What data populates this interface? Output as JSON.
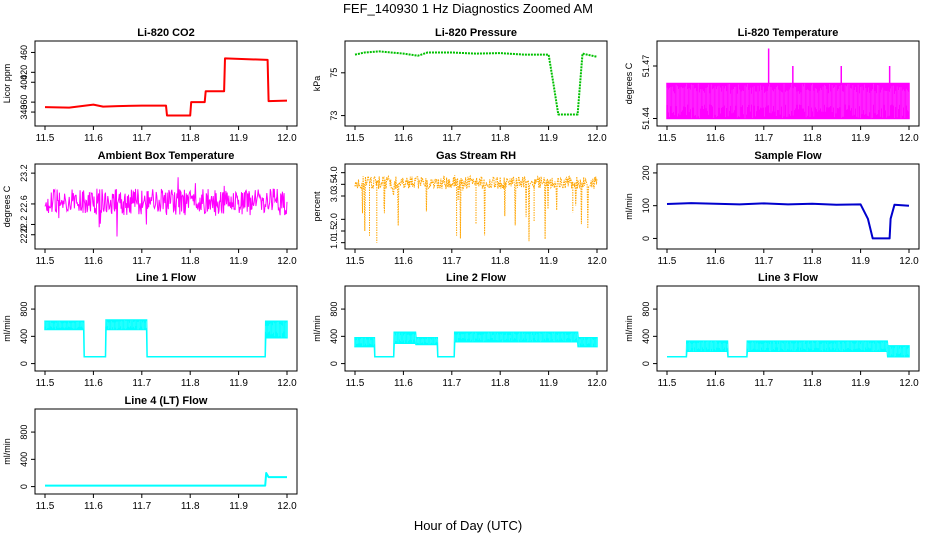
{
  "title": "FEF_140930  1 Hz Diagnostics Zoomed AM",
  "x_axis_caption": "Hour of Day (UTC)",
  "chart_data": [
    {
      "id": "co2",
      "type": "line",
      "title": "Li-820 CO2",
      "ylabel": "Licor ppm",
      "color": "#ff0000",
      "style": "line",
      "xlim": [
        11.5,
        12.0
      ],
      "xticks": [
        "11.5",
        "11.6",
        "11.7",
        "11.8",
        "11.9",
        "12.0"
      ],
      "ylim": [
        320,
        475
      ],
      "yticks": [
        "340",
        "360",
        "400",
        "420",
        "460"
      ],
      "series": [
        {
          "x": [
            11.5,
            11.55,
            11.6,
            11.62,
            11.65,
            11.7,
            11.75,
            11.752,
            11.8,
            11.802,
            11.83,
            11.832,
            11.87,
            11.872,
            11.96,
            11.962,
            12.0
          ],
          "y": [
            350,
            349,
            355,
            351,
            352,
            353,
            353,
            333,
            333,
            360,
            360,
            382,
            382,
            448,
            445,
            362,
            363
          ]
        }
      ]
    },
    {
      "id": "pressure",
      "type": "line",
      "title": "Li-820 Pressure",
      "ylabel": "kPa",
      "color": "#00c000",
      "style": "points",
      "xlim": [
        11.5,
        12.0
      ],
      "xticks": [
        "11.5",
        "11.6",
        "11.7",
        "11.8",
        "11.9",
        "12.0"
      ],
      "ylim": [
        72.7,
        76.3
      ],
      "yticks": [
        "73",
        "75"
      ],
      "series": [
        {
          "x": [
            11.5,
            11.52,
            11.55,
            11.6,
            11.63,
            11.65,
            11.7,
            11.75,
            11.8,
            11.85,
            11.9,
            11.91,
            11.92,
            11.96,
            11.965,
            11.97,
            12.0
          ],
          "y": [
            75.85,
            75.95,
            76.0,
            75.9,
            75.8,
            75.95,
            75.95,
            75.9,
            75.92,
            75.85,
            75.85,
            74.5,
            73.05,
            73.05,
            74.5,
            75.9,
            75.75
          ]
        }
      ]
    },
    {
      "id": "temperature",
      "type": "area",
      "title": "Li-820 Temperature",
      "ylabel": "degrees C",
      "color": "#ff00ff",
      "style": "band",
      "xlim": [
        11.5,
        12.0
      ],
      "xticks": [
        "11.5",
        "11.6",
        "11.7",
        "11.8",
        "11.9",
        "12.0"
      ],
      "ylim": [
        51.438,
        51.482
      ],
      "yticks": [
        "51.44",
        "51.47"
      ],
      "series": [
        {
          "x": [
            11.5,
            12.0
          ],
          "y_low": [
            51.44,
            51.44
          ],
          "y_high": [
            51.46,
            51.46
          ]
        }
      ],
      "spikes": [
        {
          "x": 11.71,
          "y": 51.48
        },
        {
          "x": 11.76,
          "y": 51.47
        },
        {
          "x": 11.86,
          "y": 51.47
        },
        {
          "x": 11.96,
          "y": 51.47
        }
      ]
    },
    {
      "id": "ambient",
      "type": "line",
      "title": "Ambient Box Temperature",
      "ylabel": "degrees C",
      "color": "#ff00ff",
      "style": "noisy",
      "xlim": [
        11.5,
        12.0
      ],
      "xticks": [
        "11.5",
        "11.6",
        "11.7",
        "11.8",
        "11.9",
        "12.0"
      ],
      "ylim": [
        21.8,
        23.3
      ],
      "yticks": [
        "22.0",
        "22.2",
        "22.6",
        "23.2"
      ],
      "series": [
        {
          "center": 22.63,
          "band_low": 22.38,
          "band_high": 22.9,
          "min": 21.85,
          "max": 23.15
        }
      ]
    },
    {
      "id": "rh",
      "type": "scatter",
      "title": "Gas Stream RH",
      "ylabel": "percent",
      "color": "#ffa500",
      "style": "noisy",
      "xlim": [
        11.5,
        12.0
      ],
      "xticks": [
        "11.5",
        "11.6",
        "11.7",
        "11.8",
        "11.9",
        "12.0"
      ],
      "ylim": [
        0.9,
        4.2
      ],
      "yticks": [
        "1.0",
        "1.5",
        "2.0",
        "3.0",
        "3.5",
        "4.0"
      ],
      "series": [
        {
          "center": 3.6,
          "band_low": 3.3,
          "band_high": 3.85,
          "min": 1.0,
          "max": 4.0
        }
      ],
      "dips": [
        {
          "x": 11.53,
          "y": 1.3
        },
        {
          "x": 11.545,
          "y": 1.0
        },
        {
          "x": 11.56,
          "y": 2.5
        },
        {
          "x": 11.71,
          "y": 1.3
        },
        {
          "x": 11.75,
          "y": 1.8
        },
        {
          "x": 11.87,
          "y": 1.9
        },
        {
          "x": 11.95,
          "y": 2.3
        }
      ]
    },
    {
      "id": "sample_flow",
      "type": "line",
      "title": "Sample Flow",
      "ylabel": "ml/min",
      "color": "#0000cd",
      "style": "line",
      "xlim": [
        11.5,
        12.0
      ],
      "xticks": [
        "11.5",
        "11.6",
        "11.7",
        "11.8",
        "11.9",
        "12.0"
      ],
      "ylim": [
        -20,
        215
      ],
      "yticks": [
        "0",
        "100",
        "200"
      ],
      "series": [
        {
          "x": [
            11.5,
            11.55,
            11.6,
            11.65,
            11.7,
            11.75,
            11.8,
            11.85,
            11.9,
            11.915,
            11.925,
            11.96,
            11.962,
            11.97,
            12.0
          ],
          "y": [
            105,
            108,
            106,
            104,
            107,
            104,
            106,
            103,
            104,
            60,
            0,
            0,
            60,
            103,
            100
          ]
        }
      ]
    },
    {
      "id": "line1",
      "type": "line",
      "title": "Line 1 Flow",
      "ylabel": "ml/min",
      "color": "#00ffff",
      "style": "band",
      "xlim": [
        11.5,
        12.0
      ],
      "xticks": [
        "11.5",
        "11.6",
        "11.7",
        "11.8",
        "11.9",
        "12.0"
      ],
      "ylim": [
        -50,
        1080
      ],
      "yticks": [
        "0",
        "400",
        "800"
      ],
      "series": [
        {
          "x": [
            11.5,
            11.58,
            11.581,
            11.625,
            11.626,
            11.71,
            11.711,
            11.955,
            11.956,
            12.0
          ],
          "y_low": [
            500,
            500,
            100,
            100,
            500,
            500,
            100,
            100,
            380,
            380
          ],
          "y_high": [
            620,
            620,
            100,
            100,
            640,
            640,
            100,
            100,
            620,
            620
          ]
        }
      ]
    },
    {
      "id": "line2",
      "type": "line",
      "title": "Line 2 Flow",
      "ylabel": "ml/min",
      "color": "#00ffff",
      "style": "band",
      "xlim": [
        11.5,
        12.0
      ],
      "xticks": [
        "11.5",
        "11.6",
        "11.7",
        "11.8",
        "11.9",
        "12.0"
      ],
      "ylim": [
        -50,
        1080
      ],
      "yticks": [
        "0",
        "400",
        "800"
      ],
      "series": [
        {
          "x": [
            11.5,
            11.54,
            11.541,
            11.58,
            11.581,
            11.625,
            11.626,
            11.67,
            11.671,
            11.705,
            11.706,
            11.96,
            11.961,
            12.0
          ],
          "y_low": [
            250,
            250,
            100,
            100,
            300,
            300,
            280,
            280,
            100,
            100,
            320,
            320,
            250,
            250
          ],
          "y_high": [
            380,
            380,
            100,
            100,
            460,
            460,
            380,
            380,
            100,
            100,
            460,
            460,
            380,
            380
          ]
        }
      ]
    },
    {
      "id": "line3",
      "type": "line",
      "title": "Line 3 Flow",
      "ylabel": "ml/min",
      "color": "#00ffff",
      "style": "band",
      "xlim": [
        11.5,
        12.0
      ],
      "xticks": [
        "11.5",
        "11.6",
        "11.7",
        "11.8",
        "11.9",
        "12.0"
      ],
      "ylim": [
        -50,
        1080
      ],
      "yticks": [
        "0",
        "400",
        "800"
      ],
      "series": [
        {
          "x": [
            11.5,
            11.54,
            11.541,
            11.625,
            11.626,
            11.665,
            11.666,
            11.955,
            11.956,
            12.0
          ],
          "y_low": [
            100,
            100,
            180,
            180,
            100,
            100,
            180,
            180,
            100,
            100
          ],
          "y_high": [
            100,
            100,
            330,
            330,
            100,
            100,
            330,
            330,
            260,
            260
          ]
        }
      ]
    },
    {
      "id": "line4",
      "type": "line",
      "title": "Line 4 (LT) Flow",
      "ylabel": "ml/min",
      "color": "#00ffff",
      "style": "line",
      "xlim": [
        11.5,
        12.0
      ],
      "xticks": [
        "11.5",
        "11.6",
        "11.7",
        "11.8",
        "11.9",
        "12.0"
      ],
      "ylim": [
        -50,
        1080
      ],
      "yticks": [
        "0",
        "400",
        "800"
      ],
      "series": [
        {
          "x": [
            11.5,
            11.955,
            11.957,
            11.962,
            12.0
          ],
          "y": [
            15,
            15,
            200,
            140,
            140
          ]
        }
      ]
    }
  ]
}
